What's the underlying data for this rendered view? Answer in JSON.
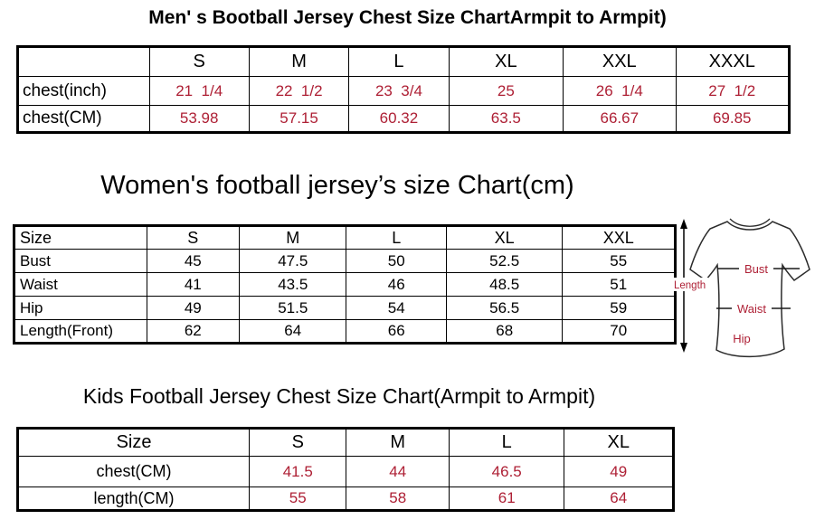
{
  "colors": {
    "value_red": "#ae2035",
    "text_black": "#000000",
    "background": "#ffffff"
  },
  "mens_chart": {
    "title": "Men' s Bootball Jersey Chest Size ChartArmpit to Armpit)",
    "columns": [
      "",
      "S",
      "M",
      "L",
      "XL",
      "XXL",
      "XXXL"
    ],
    "rows": [
      {
        "label": "chest(inch)",
        "values": [
          "21  1/4",
          "22  1/2",
          "23  3/4",
          "25",
          "26  1/4",
          "27  1/2"
        ]
      },
      {
        "label": "chest(CM)",
        "values": [
          "53.98",
          "57.15",
          "60.32",
          "63.5",
          "66.67",
          "69.85"
        ]
      }
    ]
  },
  "womens_chart": {
    "title": "Women's football jersey’s size Chart(cm)",
    "columns": [
      "Size",
      "S",
      "M",
      "L",
      "XL",
      "XXL"
    ],
    "rows": [
      {
        "label": "Bust",
        "values": [
          "45",
          "47.5",
          "50",
          "52.5",
          "55"
        ]
      },
      {
        "label": "Waist",
        "values": [
          "41",
          "43.5",
          "46",
          "48.5",
          "51"
        ]
      },
      {
        "label": "Hip",
        "values": [
          "49",
          "51.5",
          "54",
          "56.5",
          "59"
        ]
      },
      {
        "label": "Length(Front)",
        "values": [
          "62",
          "64",
          "66",
          "68",
          "70"
        ]
      }
    ],
    "diagram": {
      "length_label": "Length",
      "bust_label": "Bust",
      "waist_label": "Waist",
      "hip_label": "Hip"
    }
  },
  "kids_chart": {
    "title": "Kids Football Jersey Chest Size Chart(Armpit to Armpit)",
    "columns": [
      "Size",
      "S",
      "M",
      "L",
      "XL"
    ],
    "rows": [
      {
        "label": "chest(CM)",
        "values": [
          "41.5",
          "44",
          "46.5",
          "49"
        ]
      },
      {
        "label": "length(CM)",
        "values": [
          "55",
          "58",
          "61",
          "64"
        ]
      }
    ]
  }
}
